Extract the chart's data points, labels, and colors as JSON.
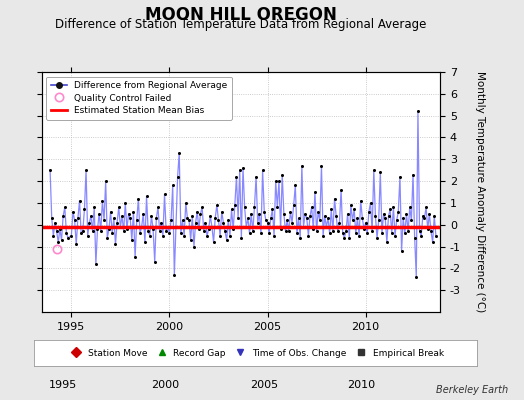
{
  "title": "MOON HILL OREGON",
  "subtitle": "Difference of Station Temperature Data from Regional Average",
  "ylabel": "Monthly Temperature Anomaly Difference (°C)",
  "xlabel_ticks": [
    1995,
    2000,
    2005,
    2010
  ],
  "ylim": [
    -4,
    7
  ],
  "yticks": [
    -3,
    -2,
    -1,
    0,
    1,
    2,
    3,
    4,
    5,
    6,
    7
  ],
  "xlim": [
    1993.5,
    2013.8
  ],
  "bias_value": -0.1,
  "background_color": "#e8e8e8",
  "plot_bg_color": "#ffffff",
  "line_color": "#8888ff",
  "marker_color": "#000000",
  "bias_color": "#ff0000",
  "qc_fail_color": "#ff88cc",
  "title_fontsize": 12,
  "subtitle_fontsize": 8.5,
  "tick_fontsize": 8,
  "ylabel_fontsize": 7.5,
  "time_series": [
    1993.917,
    1994.0,
    1994.083,
    1994.167,
    1994.25,
    1994.333,
    1994.417,
    1994.5,
    1994.583,
    1994.667,
    1994.75,
    1994.833,
    1995.0,
    1995.083,
    1995.167,
    1995.25,
    1995.333,
    1995.417,
    1995.5,
    1995.583,
    1995.667,
    1995.75,
    1995.833,
    1995.917,
    1996.0,
    1996.083,
    1996.167,
    1996.25,
    1996.333,
    1996.417,
    1996.5,
    1996.583,
    1996.667,
    1996.75,
    1996.833,
    1996.917,
    1997.0,
    1997.083,
    1997.167,
    1997.25,
    1997.333,
    1997.417,
    1997.5,
    1997.583,
    1997.667,
    1997.75,
    1997.833,
    1997.917,
    1998.0,
    1998.083,
    1998.167,
    1998.25,
    1998.333,
    1998.417,
    1998.5,
    1998.583,
    1998.667,
    1998.75,
    1998.833,
    1998.917,
    1999.0,
    1999.083,
    1999.167,
    1999.25,
    1999.333,
    1999.417,
    1999.5,
    1999.583,
    1999.667,
    1999.75,
    1999.833,
    1999.917,
    2000.0,
    2000.083,
    2000.167,
    2000.25,
    2000.333,
    2000.417,
    2000.5,
    2000.583,
    2000.667,
    2000.75,
    2000.833,
    2000.917,
    2001.0,
    2001.083,
    2001.167,
    2001.25,
    2001.333,
    2001.417,
    2001.5,
    2001.583,
    2001.667,
    2001.75,
    2001.833,
    2001.917,
    2002.0,
    2002.083,
    2002.167,
    2002.25,
    2002.333,
    2002.417,
    2002.5,
    2002.583,
    2002.667,
    2002.75,
    2002.833,
    2002.917,
    2003.0,
    2003.083,
    2003.167,
    2003.25,
    2003.333,
    2003.417,
    2003.5,
    2003.583,
    2003.667,
    2003.75,
    2003.833,
    2003.917,
    2004.0,
    2004.083,
    2004.167,
    2004.25,
    2004.333,
    2004.417,
    2004.5,
    2004.583,
    2004.667,
    2004.75,
    2004.833,
    2004.917,
    2005.0,
    2005.083,
    2005.167,
    2005.25,
    2005.333,
    2005.417,
    2005.5,
    2005.583,
    2005.667,
    2005.75,
    2005.833,
    2005.917,
    2006.0,
    2006.083,
    2006.167,
    2006.25,
    2006.333,
    2006.417,
    2006.5,
    2006.583,
    2006.667,
    2006.75,
    2006.833,
    2006.917,
    2007.0,
    2007.083,
    2007.167,
    2007.25,
    2007.333,
    2007.417,
    2007.5,
    2007.583,
    2007.667,
    2007.75,
    2007.833,
    2007.917,
    2008.0,
    2008.083,
    2008.167,
    2008.25,
    2008.333,
    2008.417,
    2008.5,
    2008.583,
    2008.667,
    2008.75,
    2008.833,
    2008.917,
    2009.0,
    2009.083,
    2009.167,
    2009.25,
    2009.333,
    2009.417,
    2009.5,
    2009.583,
    2009.667,
    2009.75,
    2009.833,
    2009.917,
    2010.0,
    2010.083,
    2010.167,
    2010.25,
    2010.333,
    2010.417,
    2010.5,
    2010.583,
    2010.667,
    2010.75,
    2010.833,
    2010.917,
    2011.0,
    2011.083,
    2011.167,
    2011.25,
    2011.333,
    2011.417,
    2011.5,
    2011.583,
    2011.667,
    2011.75,
    2011.833,
    2011.917,
    2012.0,
    2012.083,
    2012.167,
    2012.25,
    2012.333,
    2012.417,
    2012.5,
    2012.583,
    2012.667,
    2012.75,
    2012.833,
    2012.917,
    2013.0,
    2013.083,
    2013.167,
    2013.25,
    2013.333,
    2013.417,
    2013.5,
    2013.583
  ],
  "values": [
    2.5,
    0.3,
    -0.5,
    0.1,
    -0.3,
    -0.8,
    -0.2,
    -0.7,
    0.4,
    0.8,
    -0.4,
    -0.6,
    -0.5,
    0.6,
    0.2,
    -0.9,
    0.3,
    1.1,
    -0.4,
    -0.3,
    0.7,
    2.5,
    -0.5,
    0.1,
    0.4,
    -0.3,
    0.8,
    -1.8,
    -0.2,
    0.5,
    -0.3,
    1.1,
    0.2,
    2.0,
    -0.6,
    -0.2,
    0.6,
    -0.4,
    0.3,
    -0.9,
    0.1,
    0.8,
    -0.1,
    0.4,
    -0.3,
    1.0,
    -0.2,
    0.5,
    0.3,
    -0.7,
    0.6,
    -1.5,
    0.2,
    1.2,
    -0.4,
    -0.1,
    0.5,
    -0.8,
    1.3,
    -0.3,
    -0.5,
    0.4,
    -0.2,
    -1.7,
    0.3,
    0.8,
    -0.3,
    0.1,
    -0.5,
    1.4,
    -0.3,
    -0.1,
    -0.4,
    0.2,
    1.8,
    -2.3,
    -0.1,
    2.2,
    3.3,
    -0.4,
    0.2,
    -0.5,
    1.0,
    0.3,
    0.2,
    -0.7,
    0.4,
    -1.0,
    0.1,
    0.6,
    -0.2,
    0.5,
    0.8,
    -0.3,
    0.1,
    -0.5,
    -0.2,
    0.4,
    -0.1,
    -0.8,
    0.3,
    0.9,
    0.2,
    -0.5,
    0.6,
    0.1,
    -0.3,
    -0.7,
    0.2,
    -0.5,
    0.7,
    -0.2,
    0.9,
    2.2,
    0.3,
    2.5,
    -0.6,
    2.6,
    0.8,
    -0.1,
    0.3,
    -0.4,
    0.5,
    -0.3,
    0.8,
    2.2,
    0.1,
    0.5,
    -0.4,
    2.5,
    0.6,
    0.2,
    0.1,
    -0.4,
    0.3,
    0.7,
    -0.5,
    2.0,
    0.8,
    2.0,
    -0.2,
    2.3,
    0.5,
    -0.3,
    0.2,
    -0.3,
    0.6,
    0.1,
    0.9,
    1.8,
    -0.4,
    0.3,
    -0.6,
    2.7,
    -0.1,
    0.5,
    0.3,
    -0.5,
    0.4,
    0.8,
    -0.2,
    1.5,
    -0.3,
    0.6,
    0.2,
    2.7,
    -0.5,
    0.4,
    -0.1,
    0.3,
    -0.4,
    0.7,
    -0.3,
    1.2,
    0.4,
    -0.3,
    0.1,
    1.6,
    -0.4,
    -0.6,
    -0.3,
    0.5,
    -0.6,
    0.9,
    0.2,
    0.7,
    -0.4,
    0.3,
    -0.5,
    1.1,
    0.3,
    -0.2,
    0.1,
    -0.4,
    0.6,
    1.0,
    -0.3,
    2.5,
    0.4,
    -0.6,
    0.2,
    2.4,
    -0.4,
    0.5,
    0.3,
    -0.8,
    0.4,
    0.7,
    -0.4,
    0.8,
    -0.5,
    0.2,
    0.6,
    2.2,
    -1.2,
    0.3,
    -0.4,
    0.5,
    -0.3,
    0.8,
    0.2,
    2.3,
    -0.6,
    -2.4,
    5.2,
    -0.3,
    -0.5,
    0.4,
    0.3,
    0.8,
    -0.2,
    0.5,
    -0.3,
    -0.8,
    0.4,
    -0.5
  ],
  "qc_fail_x": 1994.25,
  "qc_fail_y": -1.1
}
